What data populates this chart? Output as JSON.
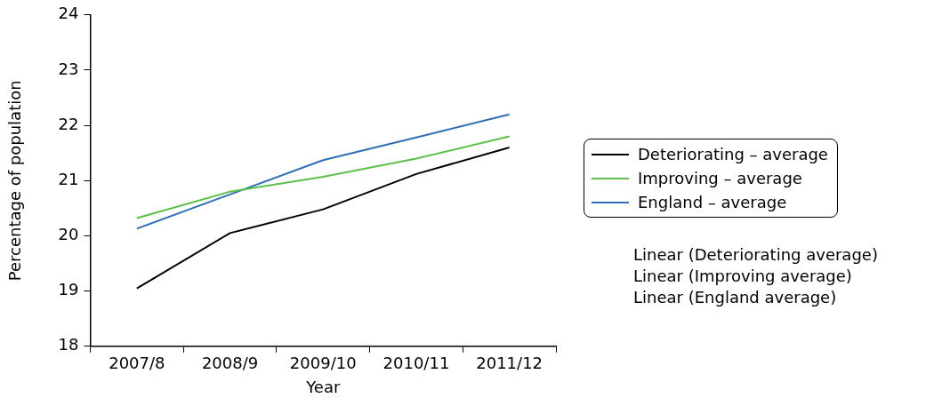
{
  "chart_data": {
    "type": "line",
    "xlabel": "Year",
    "ylabel": "Percentage of population",
    "categories": [
      "2007/8",
      "2008/9",
      "2009/10",
      "2010/11",
      "2011/12"
    ],
    "series": [
      {
        "name": "Deteriorating – average",
        "color": "#000000",
        "values": [
          19.05,
          20.05,
          20.48,
          21.12,
          21.6
        ]
      },
      {
        "name": "Improving – average",
        "color": "#5cbf4a",
        "values": [
          20.32,
          20.8,
          21.07,
          21.4,
          21.8
        ]
      },
      {
        "name": "England – average",
        "color": "#2f6db5",
        "values": [
          20.13,
          20.75,
          21.37,
          21.78,
          22.2
        ]
      }
    ],
    "ylim": [
      18,
      24
    ],
    "yticks": [
      18,
      19,
      20,
      21,
      22,
      23,
      24
    ],
    "grid": false,
    "legend": "right",
    "marker": "none",
    "line_style": "solid",
    "annotations": [
      "Linear (Deteriorating average)",
      "Linear (Improving average)",
      "Linear (England average)"
    ]
  }
}
